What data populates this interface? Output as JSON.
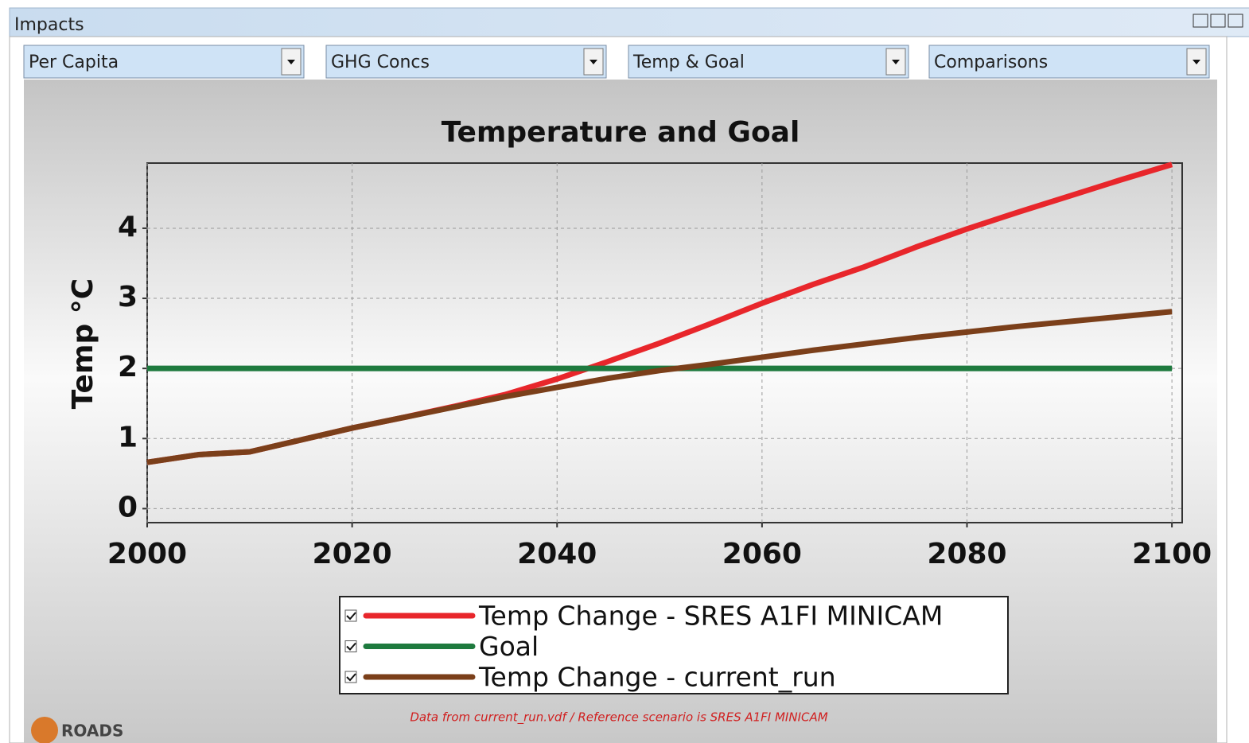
{
  "window": {
    "title": "Impacts"
  },
  "dropdowns": [
    "Per Capita",
    "GHG Concs",
    "Temp & Goal",
    "Comparisons"
  ],
  "chart_data": {
    "type": "line",
    "title": "Temperature and Goal",
    "y_label": "Temp °C",
    "x": [
      2000,
      2005,
      2010,
      2015,
      2020,
      2025,
      2030,
      2035,
      2040,
      2045,
      2050,
      2055,
      2060,
      2065,
      2070,
      2075,
      2080,
      2085,
      2090,
      2095,
      2100
    ],
    "series": [
      {
        "name": "Temp Change - SRES A1FI MINICAM",
        "color": "#e8262b",
        "values": [
          0.66,
          0.77,
          0.81,
          0.98,
          1.15,
          1.3,
          1.46,
          1.63,
          1.85,
          2.1,
          2.36,
          2.64,
          2.93,
          3.2,
          3.45,
          3.73,
          3.99,
          4.23,
          4.46,
          4.69,
          4.91
        ]
      },
      {
        "name": "Goal",
        "color": "#1e7a3e",
        "values": [
          2,
          2,
          2,
          2,
          2,
          2,
          2,
          2,
          2,
          2,
          2,
          2,
          2,
          2,
          2,
          2,
          2,
          2,
          2,
          2,
          2
        ]
      },
      {
        "name": "Temp Change - current_run",
        "color": "#7b3f1a",
        "values": [
          0.66,
          0.77,
          0.81,
          0.98,
          1.15,
          1.3,
          1.45,
          1.6,
          1.73,
          1.86,
          1.97,
          2.06,
          2.16,
          2.26,
          2.35,
          2.44,
          2.52,
          2.6,
          2.67,
          2.74,
          2.81
        ]
      }
    ],
    "xlim": [
      2000,
      2101
    ],
    "xticks": [
      2000,
      2020,
      2040,
      2060,
      2080,
      2100
    ],
    "ylim": [
      -0.2,
      4.93
    ],
    "yticks": [
      0,
      1,
      2,
      3,
      4
    ],
    "grid": true
  },
  "footnote": "Data from current_run.vdf / Reference scenario is SRES A1FI MINICAM",
  "logo": "ROADS"
}
